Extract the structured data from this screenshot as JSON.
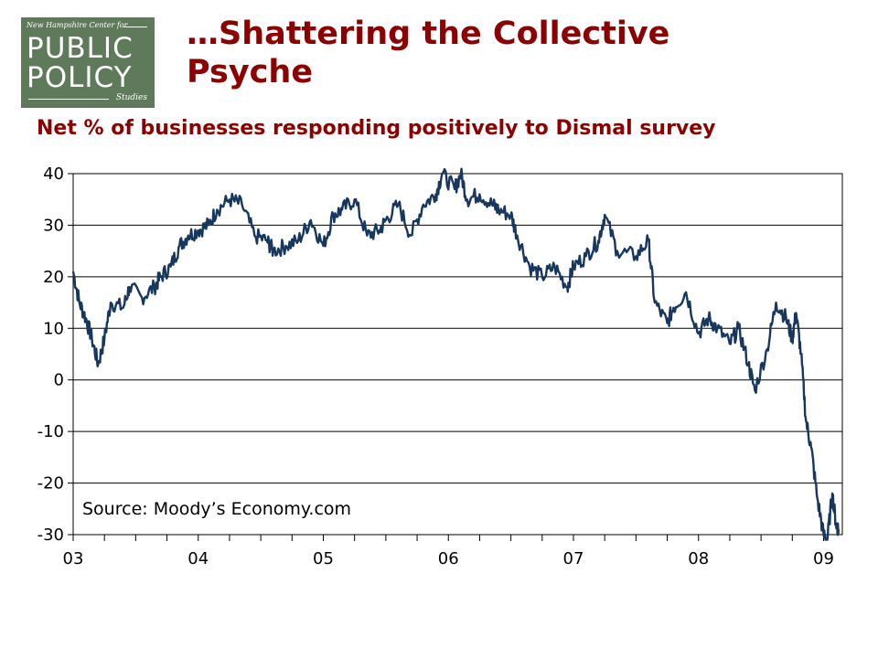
{
  "logo": {
    "top_text": "New Hampshire Center for",
    "line1": "PUBLIC",
    "line2": "POLICY",
    "line3": "Studies"
  },
  "slide": {
    "title": "…Shattering the Collective Psyche"
  },
  "chart_data": {
    "type": "line",
    "title": "Net % of businesses responding positively to Dismal survey",
    "xlabel": "",
    "ylabel": "",
    "ylim": [
      -30,
      40
    ],
    "yticks": [
      "40",
      "30",
      "20",
      "10",
      "0",
      "-10",
      "-20",
      "-30"
    ],
    "xticks": [
      "03",
      "04",
      "05",
      "06",
      "07",
      "08",
      "09"
    ],
    "xlim": [
      2003.0,
      2009.15
    ],
    "grid": "horizontal",
    "line_color": "#17375e",
    "annotation": "Source: Moody’s Economy.com",
    "series": [
      {
        "name": "",
        "x": [
          2003.0,
          2003.05,
          2003.1,
          2003.15,
          2003.2,
          2003.25,
          2003.3,
          2003.4,
          2003.45,
          2003.55,
          2003.65,
          2003.7,
          2003.78,
          2003.85,
          2003.92,
          2004.0,
          2004.08,
          2004.15,
          2004.25,
          2004.35,
          2004.45,
          2004.55,
          2004.6,
          2004.7,
          2004.8,
          2004.9,
          2005.0,
          2005.08,
          2005.15,
          2005.25,
          2005.35,
          2005.45,
          2005.5,
          2005.6,
          2005.7,
          2005.8,
          2005.9,
          2005.95,
          2006.05,
          2006.1,
          2006.15,
          2006.25,
          2006.35,
          2006.4,
          2006.5,
          2006.55,
          2006.65,
          2006.75,
          2006.85,
          2006.95,
          2007.0,
          2007.1,
          2007.2,
          2007.25,
          2007.35,
          2007.5,
          2007.6,
          2007.65,
          2007.75,
          2007.8,
          2007.9,
          2008.0,
          2008.08,
          2008.15,
          2008.25,
          2008.32,
          2008.4,
          2008.45,
          2008.55,
          2008.62,
          2008.7,
          2008.75,
          2008.78,
          2008.82,
          2008.86,
          2008.9,
          2008.95,
          2009.0,
          2009.03,
          2009.07,
          2009.1,
          2009.12
        ],
        "values": [
          21,
          15,
          12,
          8,
          3,
          8,
          15,
          14,
          18,
          16,
          18,
          20,
          22,
          26,
          28,
          29,
          30,
          33,
          35,
          34,
          28,
          27,
          25,
          26,
          27,
          31,
          26,
          32,
          33,
          35,
          28,
          29,
          31,
          34,
          28,
          34,
          36,
          40,
          37,
          40,
          35,
          36,
          34,
          33,
          32,
          28,
          22,
          20,
          22,
          18,
          22,
          24,
          27,
          32,
          25,
          24,
          27,
          15,
          11,
          14,
          17,
          9,
          12,
          10,
          7,
          10,
          3,
          -2,
          6,
          15,
          12,
          8,
          13,
          5,
          -8,
          -13,
          -23,
          -30,
          -31,
          -22,
          -28,
          -29
        ]
      }
    ]
  }
}
